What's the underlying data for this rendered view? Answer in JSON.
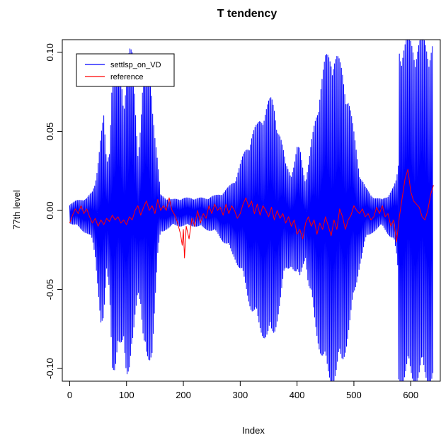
{
  "chart_data": {
    "type": "line",
    "title": "T tendency",
    "xlabel": "Index",
    "ylabel": "77th level",
    "xlim": [
      -13,
      652
    ],
    "ylim": [
      -0.108,
      0.108
    ],
    "x_ticks": [
      0,
      100,
      200,
      300,
      400,
      500,
      600
    ],
    "x_tick_labels": [
      "0",
      "100",
      "200",
      "300",
      "400",
      "500",
      "600"
    ],
    "y_ticks": [
      -0.1,
      -0.05,
      0.0,
      0.05,
      0.1
    ],
    "y_tick_labels": [
      "-0.10",
      "-0.05",
      "0.00",
      "0.05",
      "0.10"
    ],
    "legend": {
      "position": "top-left",
      "entries": [
        {
          "label": "settlsp_on_VD",
          "color": "#0000ff"
        },
        {
          "label": "reference",
          "color": "#ff0000"
        }
      ]
    },
    "series": [
      {
        "name": "settlsp_on_VD",
        "color": "#0000ff",
        "style": "oscillating",
        "n": 640,
        "x": [
          0,
          10,
          20,
          30,
          40,
          45,
          50,
          55,
          60,
          65,
          70,
          75,
          80,
          85,
          90,
          95,
          100,
          105,
          110,
          115,
          120,
          125,
          130,
          135,
          140,
          145,
          150,
          155,
          160,
          170,
          180,
          200,
          220,
          240,
          260,
          270,
          280,
          290,
          300,
          310,
          320,
          330,
          340,
          350,
          355,
          360,
          370,
          380,
          390,
          395,
          400,
          405,
          410,
          415,
          420,
          430,
          440,
          450,
          460,
          470,
          480,
          490,
          500,
          510,
          520,
          530,
          540,
          550,
          560,
          570,
          575,
          578,
          579,
          581,
          600,
          612,
          615,
          617,
          620,
          624,
          626,
          630,
          634,
          637,
          640
        ],
        "y_max": [
          0.004,
          0.006,
          0.007,
          0.008,
          0.012,
          0.018,
          0.035,
          0.05,
          0.06,
          0.03,
          0.04,
          0.1,
          0.1,
          0.095,
          0.09,
          0.07,
          0.098,
          0.105,
          0.1,
          0.07,
          0.04,
          0.06,
          0.09,
          0.099,
          0.099,
          0.08,
          0.05,
          0.03,
          0.01,
          0.008,
          0.007,
          0.008,
          0.008,
          0.008,
          0.01,
          0.012,
          0.015,
          0.02,
          0.03,
          0.04,
          0.05,
          0.055,
          0.065,
          0.07,
          0.072,
          0.068,
          0.05,
          0.03,
          0.025,
          0.03,
          0.04,
          0.04,
          0.03,
          0.02,
          0.03,
          0.055,
          0.08,
          0.098,
          0.105,
          0.1,
          0.09,
          0.075,
          0.05,
          0.025,
          0.015,
          0.01,
          0.008,
          0.007,
          0.01,
          0.015,
          0.02,
          0.03,
          0.11,
          0.11,
          0.11,
          0.11,
          0.11,
          0.11,
          0.11,
          0.11,
          0.11,
          0.11,
          0.11,
          0.11,
          0.11
        ],
        "y_min": [
          -0.008,
          -0.01,
          -0.012,
          -0.015,
          -0.02,
          -0.03,
          -0.05,
          -0.075,
          -0.08,
          -0.04,
          -0.05,
          -0.1,
          -0.108,
          -0.1,
          -0.09,
          -0.08,
          -0.105,
          -0.108,
          -0.1,
          -0.07,
          -0.05,
          -0.06,
          -0.09,
          -0.105,
          -0.1,
          -0.09,
          -0.06,
          -0.03,
          -0.015,
          -0.012,
          -0.01,
          -0.01,
          -0.01,
          -0.012,
          -0.015,
          -0.02,
          -0.025,
          -0.03,
          -0.04,
          -0.05,
          -0.065,
          -0.075,
          -0.08,
          -0.085,
          -0.085,
          -0.08,
          -0.06,
          -0.04,
          -0.035,
          -0.04,
          -0.045,
          -0.045,
          -0.035,
          -0.03,
          -0.05,
          -0.07,
          -0.09,
          -0.108,
          -0.11,
          -0.108,
          -0.1,
          -0.08,
          -0.06,
          -0.035,
          -0.02,
          -0.015,
          -0.012,
          -0.01,
          -0.015,
          -0.02,
          -0.03,
          -0.04,
          -0.11,
          -0.11,
          -0.11,
          -0.11,
          -0.11,
          -0.11,
          -0.11,
          -0.11,
          -0.11,
          -0.11,
          -0.11,
          -0.11,
          -0.11
        ]
      },
      {
        "name": "reference",
        "color": "#ff0000",
        "x": [
          0,
          5,
          10,
          15,
          20,
          25,
          30,
          35,
          40,
          45,
          50,
          55,
          60,
          65,
          70,
          75,
          80,
          85,
          90,
          95,
          100,
          105,
          110,
          115,
          120,
          125,
          130,
          135,
          140,
          145,
          150,
          155,
          160,
          165,
          170,
          175,
          180,
          185,
          190,
          195,
          198,
          200,
          202,
          205,
          210,
          215,
          220,
          225,
          230,
          235,
          240,
          245,
          250,
          255,
          260,
          265,
          270,
          275,
          280,
          285,
          290,
          295,
          300,
          305,
          310,
          315,
          320,
          325,
          330,
          335,
          340,
          345,
          350,
          355,
          360,
          365,
          370,
          375,
          380,
          385,
          390,
          395,
          400,
          405,
          410,
          415,
          420,
          425,
          430,
          435,
          440,
          445,
          450,
          455,
          460,
          465,
          470,
          475,
          480,
          485,
          490,
          495,
          500,
          505,
          510,
          515,
          520,
          525,
          530,
          535,
          540,
          545,
          550,
          555,
          560,
          565,
          570,
          575,
          580,
          585,
          590,
          595,
          600,
          605,
          610,
          615,
          620,
          625,
          630,
          635,
          640
        ],
        "y": [
          -0.008,
          -0.003,
          0.001,
          -0.002,
          0.003,
          -0.002,
          0.001,
          -0.004,
          -0.008,
          -0.005,
          -0.01,
          -0.006,
          -0.009,
          -0.005,
          -0.007,
          -0.003,
          -0.006,
          -0.004,
          -0.008,
          -0.006,
          -0.009,
          -0.004,
          -0.006,
          0.0,
          0.003,
          -0.003,
          0.002,
          0.006,
          0.0,
          0.003,
          -0.002,
          0.007,
          0.0,
          0.003,
          0.0,
          0.008,
          0.0,
          -0.003,
          -0.008,
          -0.015,
          -0.022,
          -0.012,
          -0.03,
          -0.01,
          -0.018,
          -0.005,
          -0.01,
          0.0,
          -0.008,
          -0.002,
          -0.005,
          0.003,
          -0.002,
          0.004,
          0.0,
          0.002,
          -0.003,
          0.004,
          -0.002,
          0.003,
          0.0,
          -0.005,
          -0.002,
          0.004,
          0.008,
          0.002,
          0.006,
          -0.002,
          0.004,
          -0.003,
          0.003,
          0.0,
          -0.004,
          0.002,
          -0.006,
          0.0,
          -0.005,
          -0.002,
          -0.008,
          -0.004,
          -0.01,
          -0.006,
          -0.015,
          -0.012,
          -0.018,
          -0.008,
          -0.004,
          -0.01,
          -0.006,
          -0.015,
          -0.008,
          -0.012,
          -0.004,
          -0.01,
          -0.016,
          -0.006,
          -0.012,
          0.001,
          -0.004,
          -0.012,
          -0.006,
          -0.003,
          0.003,
          0.0,
          -0.002,
          0.001,
          -0.004,
          -0.002,
          -0.006,
          -0.004,
          0.002,
          -0.002,
          0.003,
          -0.004,
          -0.002,
          -0.01,
          -0.006,
          -0.02,
          -0.004,
          0.008,
          0.02,
          0.026,
          0.012,
          0.006,
          0.004,
          0.002,
          -0.004,
          -0.006,
          0.0,
          0.01,
          0.016
        ]
      }
    ]
  }
}
